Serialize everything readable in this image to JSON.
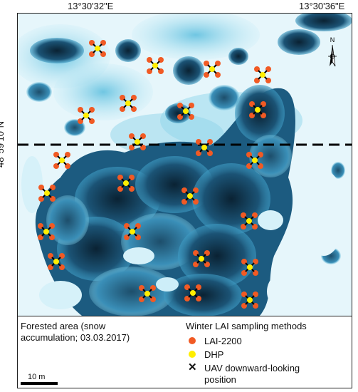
{
  "coordinates": {
    "top_left_lon": "13°30'32\"E",
    "top_right_lon": "13°30'36\"E",
    "left_lat": "48°59'10\"N"
  },
  "north_arrow": {
    "label": "N"
  },
  "legend": {
    "area_label_line1": "Forested area (snow",
    "area_label_line2": "accumulation; 03.03.2017)",
    "methods_title": "Winter LAI sampling methods",
    "items": [
      {
        "label": "LAI-2200",
        "color": "#f15a24",
        "symbol": "dot"
      },
      {
        "label": "DHP",
        "color": "#ffee00",
        "symbol": "dot"
      },
      {
        "label": "UAV downward-looking",
        "label2": "position",
        "color": "#000000",
        "symbol": "cross"
      }
    ]
  },
  "scale_bar": {
    "label": "10 m"
  },
  "colors": {
    "snow": "#e6f6fb",
    "canopy_dark": "#0f2f44",
    "canopy_mid": "#1f6a8e",
    "canopy_light": "#55b7d6",
    "transect_line": "#000000"
  }
}
